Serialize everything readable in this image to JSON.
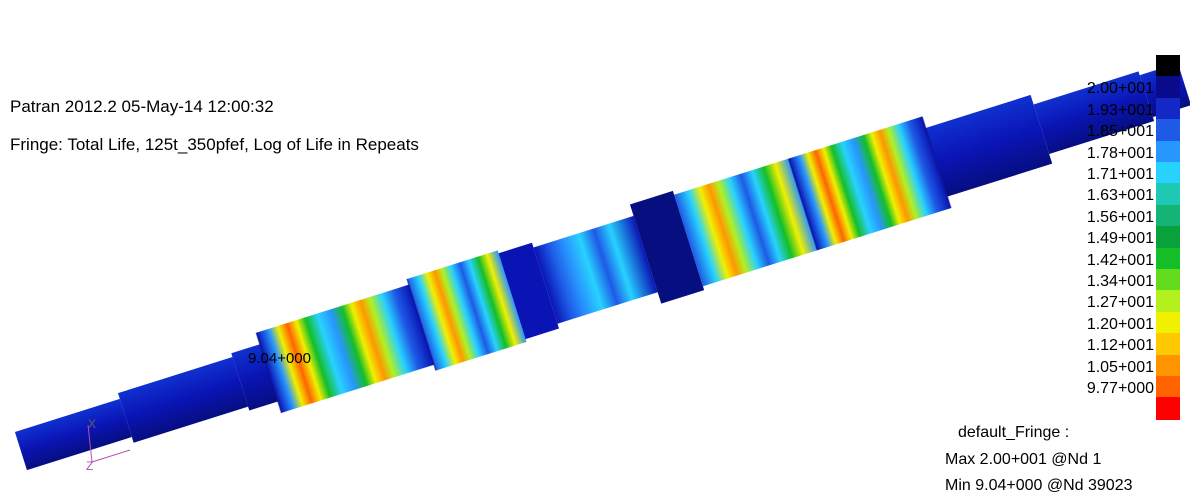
{
  "header": {
    "line1": "Patran 2012.2 05-May-14 12:00:32",
    "line2": "Fringe: Total Life, 125t_350pfef, Log of Life in Repeats"
  },
  "model": {
    "min_marker_label": "9.04+000",
    "triad_labels": [
      "X",
      "Z"
    ]
  },
  "legend": {
    "entries": [
      {
        "label": "",
        "color": "#000000"
      },
      {
        "label": "2.00+001",
        "color": "#0a0a8c"
      },
      {
        "label": "1.93+001",
        "color": "#1428c8"
      },
      {
        "label": "1.85+001",
        "color": "#1e5ae6"
      },
      {
        "label": "1.78+001",
        "color": "#2896ff"
      },
      {
        "label": "1.71+001",
        "color": "#28d2ff"
      },
      {
        "label": "1.63+001",
        "color": "#1ec8b4"
      },
      {
        "label": "1.56+001",
        "color": "#14b478"
      },
      {
        "label": "1.49+001",
        "color": "#0aa03c"
      },
      {
        "label": "1.42+001",
        "color": "#14be28"
      },
      {
        "label": "1.34+001",
        "color": "#64dc1e"
      },
      {
        "label": "1.27+001",
        "color": "#b4f01e"
      },
      {
        "label": "1.20+001",
        "color": "#f0f000"
      },
      {
        "label": "1.12+001",
        "color": "#ffc800"
      },
      {
        "label": "1.05+001",
        "color": "#ff9600"
      },
      {
        "label": "9.77+000",
        "color": "#ff6400"
      },
      {
        "label": "",
        "color": "#ff0000"
      }
    ]
  },
  "summary": {
    "title": "default_Fringe :",
    "max": "Max 2.00+001 @Nd 1",
    "min": "Min 9.04+000 @Nd 39023"
  },
  "colors": {
    "shaft_base": "#0a14b4",
    "shaft_dark": "#060e80",
    "highlight": "#1e5ae6"
  }
}
